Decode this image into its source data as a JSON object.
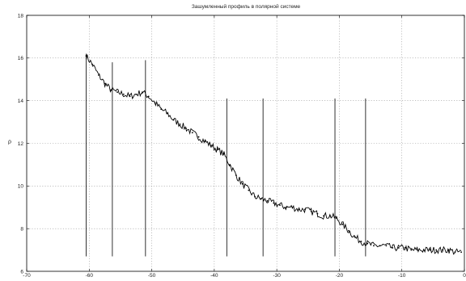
{
  "chart_data": {
    "type": "line",
    "title": "Зашумленный профиль в полярной системе",
    "xlabel": "",
    "ylabel": "ρ",
    "xlim": [
      -70,
      0
    ],
    "ylim": [
      6,
      18
    ],
    "grid": true,
    "xticks": [
      -70,
      -60,
      -50,
      -40,
      -30,
      -20,
      -10,
      0
    ],
    "yticks": [
      6,
      8,
      10,
      12,
      14,
      16,
      18
    ],
    "xtick_labels": [
      "-70",
      "-60",
      "-50",
      "-40",
      "-30",
      "-20",
      "-10",
      "0"
    ],
    "ytick_labels": [
      "6",
      "8",
      "10",
      "12",
      "14",
      "16",
      "18"
    ],
    "series": [
      {
        "color": "#000000",
        "x": [
          -60.5,
          -59.5,
          -58.5,
          -57.5,
          -56.5,
          -55.5,
          -54.5,
          -53.5,
          -52.5,
          -51.5,
          -50.5,
          -49.5,
          -48.5,
          -47.5,
          -46.5,
          -45.5,
          -44.5,
          -43.5,
          -42.5,
          -41.5,
          -40.5,
          -39.5,
          -38.5,
          -37.5,
          -36.5,
          -35.5,
          -34.5,
          -33.5,
          -32.5,
          -31.5,
          -30.5,
          -29.5,
          -28.5,
          -27.5,
          -26.5,
          -25.5,
          -24.5,
          -23.5,
          -22.5,
          -21.5,
          -20.5,
          -19.5,
          -18.5,
          -17.5,
          -16.5,
          -15.5,
          -14.5,
          -13.5,
          -12.5,
          -11.5,
          -10.5,
          -9.5,
          -8.5,
          -7.5,
          -6.5,
          -5.5,
          -4.5,
          -3.5,
          -2.5,
          -1.5,
          -0.5
        ],
        "y": [
          16.1,
          15.7,
          15.2,
          14.8,
          14.5,
          14.4,
          14.3,
          14.2,
          14.3,
          14.4,
          14.2,
          13.9,
          13.6,
          13.4,
          13.1,
          12.9,
          12.7,
          12.5,
          12.3,
          12.1,
          11.9,
          11.7,
          11.5,
          11.0,
          10.5,
          10.1,
          9.8,
          9.5,
          9.4,
          9.3,
          9.2,
          9.1,
          9.0,
          9.0,
          8.9,
          8.9,
          8.8,
          8.7,
          8.6,
          8.6,
          8.5,
          8.2,
          7.9,
          7.6,
          7.4,
          7.3,
          7.2,
          7.2,
          7.2,
          7.1,
          7.1,
          7.1,
          7.0,
          7.0,
          7.0,
          7.0,
          7.0,
          7.0,
          7.0,
          6.9,
          6.9
        ]
      }
    ],
    "vertical_markers": [
      {
        "x": -60.5,
        "y_top": 16.2
      },
      {
        "x": -56.3,
        "y_top": 15.8
      },
      {
        "x": -51.0,
        "y_top": 15.9
      },
      {
        "x": -38.0,
        "y_top": 14.1
      },
      {
        "x": -32.2,
        "y_top": 14.1
      },
      {
        "x": -20.7,
        "y_top": 14.1
      },
      {
        "x": -15.8,
        "y_top": 14.1
      }
    ],
    "marker_bottom": 6.7
  }
}
